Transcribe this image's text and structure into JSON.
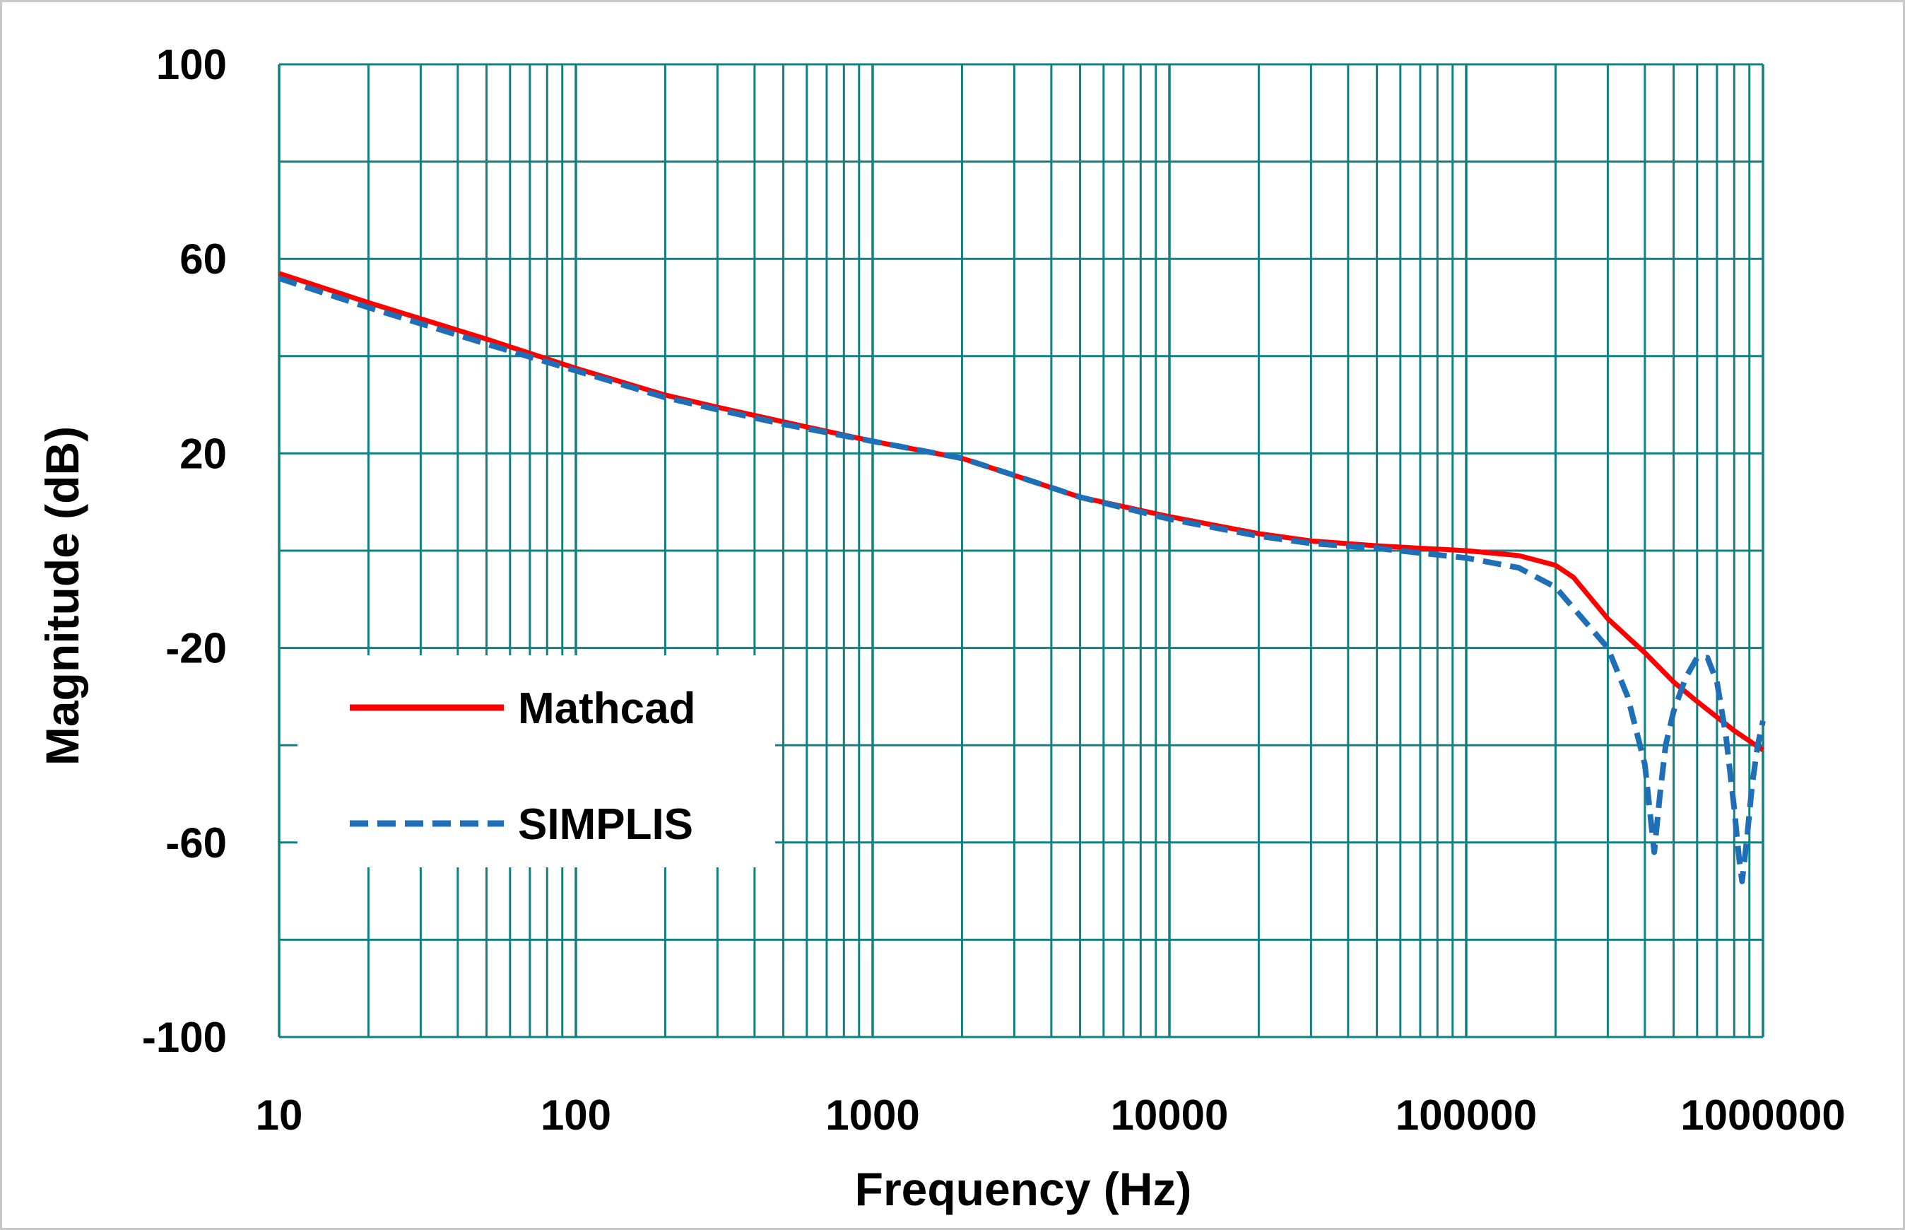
{
  "chart_data": {
    "type": "line",
    "title": "",
    "xlabel": "Frequency (Hz)",
    "ylabel": "Magnitude (dB)",
    "x_scale": "log",
    "xlim": [
      10,
      1000000
    ],
    "ylim": [
      -100,
      100
    ],
    "x_tick_labels": [
      "10",
      "100",
      "1000",
      "10000",
      "100000",
      "1000000"
    ],
    "y_tick_labels": [
      "100",
      "60",
      "20",
      "-20",
      "-60",
      "-100"
    ],
    "y_ticks": [
      100,
      60,
      20,
      -20,
      -60,
      -100
    ],
    "grid": true,
    "legend_placement": "lower-left",
    "series": [
      {
        "name": "Mathcad",
        "color": "#ff0000",
        "style": "solid",
        "x": [
          10,
          20,
          50,
          100,
          200,
          300,
          500,
          1000,
          2000,
          3000,
          5000,
          10000,
          20000,
          30000,
          50000,
          100000,
          150000,
          200000,
          230000,
          300000,
          400000,
          500000,
          600000,
          800000,
          1000000
        ],
        "y": [
          57,
          51,
          43.5,
          37.5,
          32,
          29.5,
          26.5,
          22.5,
          19,
          15.5,
          11,
          7,
          3.5,
          2,
          1,
          0,
          -1,
          -3,
          -5.5,
          -14,
          -21,
          -27,
          -31,
          -37,
          -41
        ]
      },
      {
        "name": "SIMPLIS",
        "color": "#1f6fb8",
        "style": "dashed",
        "x": [
          10,
          20,
          50,
          100,
          200,
          300,
          500,
          1000,
          2000,
          3000,
          5000,
          10000,
          20000,
          30000,
          50000,
          100000,
          150000,
          200000,
          300000,
          350000,
          400000,
          430000,
          450000,
          470000,
          500000,
          550000,
          600000,
          650000,
          700000,
          750000,
          800000,
          830000,
          850000,
          880000,
          920000,
          960000,
          1000000
        ],
        "y": [
          56,
          50,
          42.5,
          37,
          31.5,
          29,
          26,
          22.5,
          19,
          15.5,
          11,
          6.5,
          3,
          1.5,
          0.5,
          -1.5,
          -3.5,
          -7.5,
          -20,
          -30,
          -44,
          -62,
          -50,
          -40,
          -33,
          -26,
          -22,
          -22,
          -27,
          -38,
          -53,
          -63,
          -68,
          -60,
          -48,
          -40,
          -35
        ]
      }
    ]
  }
}
